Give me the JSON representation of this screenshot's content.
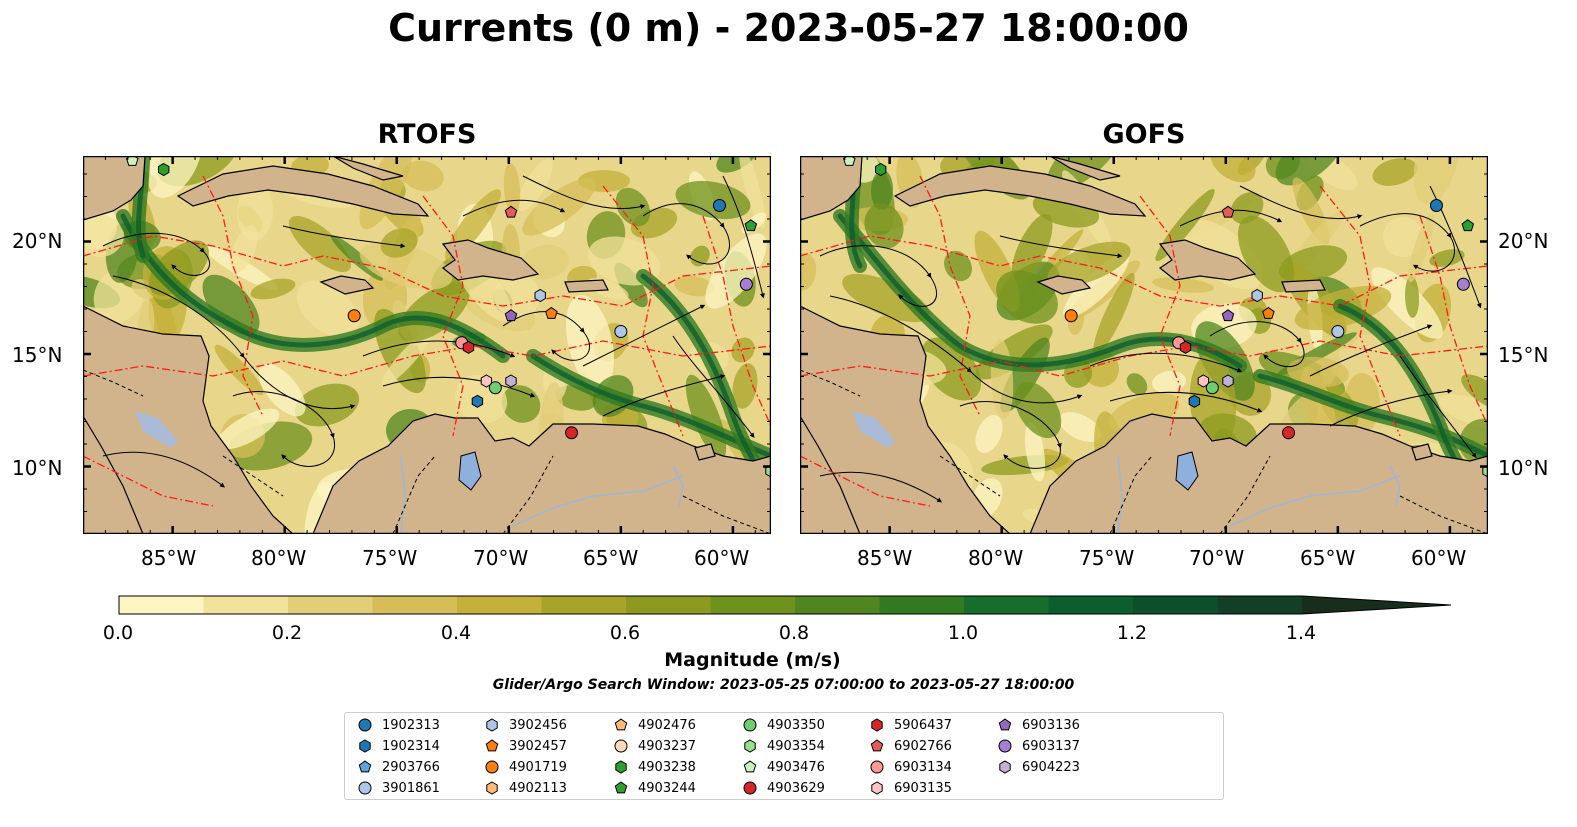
{
  "title": "Currents (0 m) - 2023-05-27 18:00:00",
  "panels": [
    {
      "title": "RTOFS"
    },
    {
      "title": "GOFS"
    }
  ],
  "axes": {
    "x_ticks": [
      "85°W",
      "80°W",
      "75°W",
      "70°W",
      "65°W",
      "60°W"
    ],
    "x_values": [
      -85,
      -80,
      -75,
      -70,
      -65,
      -60
    ],
    "y_ticks": [
      "20°N",
      "15°N",
      "10°N"
    ],
    "y_values": [
      20,
      15,
      10
    ],
    "lon_range": [
      -89,
      -58.3
    ],
    "lat_range": [
      7,
      23.8
    ]
  },
  "colorbar": {
    "label": "Magnitude (m/s)",
    "ticks": [
      "0.0",
      "0.2",
      "0.4",
      "0.6",
      "0.8",
      "1.0",
      "1.2",
      "1.4"
    ],
    "tick_values": [
      0,
      0.2,
      0.4,
      0.6,
      0.8,
      1.0,
      1.2,
      1.4
    ],
    "range": [
      0,
      1.5
    ],
    "extend": "max",
    "colors": [
      "#fdf6c3",
      "#f1e29a",
      "#e2cd78",
      "#d6bd58",
      "#c4b03a",
      "#a8a42a",
      "#8c9b1f",
      "#6f911e",
      "#50861f",
      "#327a21",
      "#156e2c",
      "#0d5e2f",
      "#0c4f2b",
      "#123f25",
      "#172e1d"
    ]
  },
  "search_window": "Glider/Argo Search Window: 2023-05-25 07:00:00 to 2023-05-27 18:00:00",
  "legend": [
    {
      "id": "1902313",
      "color": "#1f77b4",
      "marker": "circle"
    },
    {
      "id": "1902314",
      "color": "#1f77b4",
      "marker": "hexagon"
    },
    {
      "id": "2903766",
      "color": "#5fa2dd",
      "marker": "pentagon"
    },
    {
      "id": "3901861",
      "color": "#aec7e8",
      "marker": "circle"
    },
    {
      "id": "3902456",
      "color": "#aec7e8",
      "marker": "hexagon"
    },
    {
      "id": "3902457",
      "color": "#ff7f0e",
      "marker": "pentagon"
    },
    {
      "id": "4901719",
      "color": "#ff7f0e",
      "marker": "circle"
    },
    {
      "id": "4902113",
      "color": "#ffbb78",
      "marker": "hexagon"
    },
    {
      "id": "4902476",
      "color": "#ffbb78",
      "marker": "pentagon"
    },
    {
      "id": "4903237",
      "color": "#fcd9b8",
      "marker": "circle"
    },
    {
      "id": "4903238",
      "color": "#2ca02c",
      "marker": "hexagon"
    },
    {
      "id": "4903244",
      "color": "#2ca02c",
      "marker": "pentagon"
    },
    {
      "id": "4903350",
      "color": "#6fcf6f",
      "marker": "circle"
    },
    {
      "id": "4903354",
      "color": "#98df8a",
      "marker": "hexagon"
    },
    {
      "id": "4903476",
      "color": "#c9f2c0",
      "marker": "pentagon"
    },
    {
      "id": "4903629",
      "color": "#d62728",
      "marker": "circle"
    },
    {
      "id": "5906437",
      "color": "#d62728",
      "marker": "hexagon"
    },
    {
      "id": "6902766",
      "color": "#e35b5b",
      "marker": "pentagon"
    },
    {
      "id": "6903134",
      "color": "#ff9896",
      "marker": "circle"
    },
    {
      "id": "6903135",
      "color": "#ffc4c2",
      "marker": "hexagon"
    },
    {
      "id": "6903136",
      "color": "#9467bd",
      "marker": "pentagon"
    },
    {
      "id": "6903137",
      "color": "#a57fd0",
      "marker": "circle"
    },
    {
      "id": "6904223",
      "color": "#c5b0d5",
      "marker": "hexagon"
    }
  ],
  "floats": [
    {
      "id": "1902313",
      "lon": -60.6,
      "lat": 21.6
    },
    {
      "id": "4903244",
      "lon": -59.2,
      "lat": 20.7
    },
    {
      "id": "6902766",
      "lon": -69.9,
      "lat": 21.3
    },
    {
      "id": "4903238",
      "lon": -85.4,
      "lat": 23.2
    },
    {
      "id": "4903476",
      "lon": -86.8,
      "lat": 23.6
    },
    {
      "id": "6903137",
      "lon": -59.4,
      "lat": 18.1
    },
    {
      "id": "3902456",
      "lon": -68.6,
      "lat": 17.6
    },
    {
      "id": "4901719",
      "lon": -76.9,
      "lat": 16.7
    },
    {
      "id": "6903136",
      "lon": -69.9,
      "lat": 16.7
    },
    {
      "id": "3902457",
      "lon": -68.1,
      "lat": 16.8
    },
    {
      "id": "3901861",
      "lon": -65.0,
      "lat": 16.0
    },
    {
      "id": "6903134",
      "lon": -72.1,
      "lat": 15.5
    },
    {
      "id": "5906437",
      "lon": -71.8,
      "lat": 15.3
    },
    {
      "id": "6903135",
      "lon": -71.0,
      "lat": 13.8
    },
    {
      "id": "4903350",
      "lon": -70.6,
      "lat": 13.5
    },
    {
      "id": "6904223",
      "lon": -69.9,
      "lat": 13.8
    },
    {
      "id": "1902314",
      "lon": -71.4,
      "lat": 12.9
    },
    {
      "id": "4903629",
      "lon": -67.2,
      "lat": 11.5
    },
    {
      "id": "4903354",
      "lon": -58.3,
      "lat": 9.8
    }
  ]
}
